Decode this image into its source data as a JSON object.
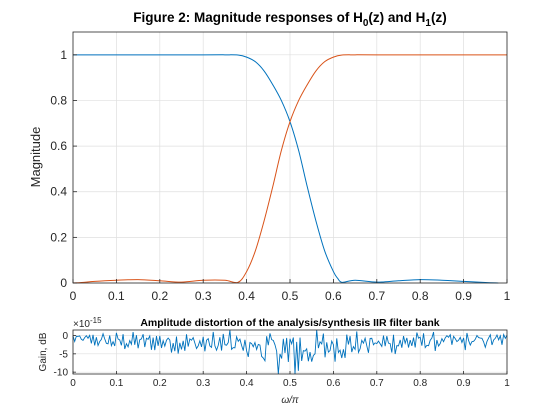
{
  "chart_data": [
    {
      "type": "line",
      "title": "Figure 2: Magnitude responses of H",
      "title_sub0": "0",
      "title_mid": "(z) and H",
      "title_sub1": "1",
      "title_end": "(z)",
      "xlabel": "",
      "ylabel": "Magnitude",
      "xlim": [
        0,
        1
      ],
      "ylim": [
        0,
        1.1
      ],
      "grid": true,
      "xticks": [
        "0",
        "0.1",
        "0.2",
        "0.3",
        "0.4",
        "0.5",
        "0.6",
        "0.7",
        "0.8",
        "0.9",
        "1"
      ],
      "yticks": [
        "0",
        "0.2",
        "0.4",
        "0.6",
        "0.8",
        "1"
      ],
      "series": [
        {
          "color": "#0072BD",
          "x": [
            0,
            0.05,
            0.1,
            0.2,
            0.3,
            0.35,
            0.38,
            0.4,
            0.42,
            0.44,
            0.46,
            0.48,
            0.5,
            0.52,
            0.54,
            0.56,
            0.58,
            0.6,
            0.61,
            0.62,
            0.65,
            0.7,
            0.75,
            0.8,
            0.85,
            0.9,
            0.95,
            0.98
          ],
          "y": [
            1,
            1,
            1,
            1,
            1,
            1,
            0.999,
            0.99,
            0.97,
            0.93,
            0.87,
            0.8,
            0.707,
            0.58,
            0.42,
            0.27,
            0.14,
            0.05,
            0.02,
            0.003,
            0.012,
            0.004,
            0.01,
            0.015,
            0.012,
            0.007,
            0.002,
            0
          ]
        },
        {
          "color": "#D95319",
          "x": [
            0,
            0.02,
            0.05,
            0.1,
            0.15,
            0.2,
            0.25,
            0.3,
            0.35,
            0.38,
            0.4,
            0.42,
            0.44,
            0.46,
            0.48,
            0.5,
            0.52,
            0.54,
            0.56,
            0.58,
            0.6,
            0.62,
            0.65,
            0.7,
            0.8,
            0.9,
            1
          ],
          "y": [
            0,
            0.002,
            0.007,
            0.012,
            0.015,
            0.01,
            0.004,
            0.012,
            0.012,
            0.003,
            0.05,
            0.14,
            0.27,
            0.42,
            0.58,
            0.707,
            0.8,
            0.87,
            0.93,
            0.97,
            0.99,
            0.999,
            1,
            1,
            1,
            1,
            1
          ]
        }
      ]
    },
    {
      "type": "line",
      "title": "Amplitude distortion of the analysis/synthesis IIR filter bank",
      "xlabel": "ω/π",
      "ylabel": "Gain, dB",
      "scale_exponent": "×10",
      "scale_power": "-15",
      "xlim": [
        0,
        1
      ],
      "ylim": [
        -10.5,
        1.5
      ],
      "grid": true,
      "xticks": [
        "0",
        "0.1",
        "0.2",
        "0.3",
        "0.4",
        "0.5",
        "0.6",
        "0.7",
        "0.8",
        "0.9",
        "1"
      ],
      "yticks": [
        "0",
        "-5",
        "-10"
      ],
      "series": [
        {
          "color": "#0072BD",
          "note_envelope_x": [
            0,
            0.1,
            0.2,
            0.3,
            0.4,
            0.45,
            0.5,
            0.55,
            0.6,
            0.7,
            0.8,
            0.9,
            1
          ],
          "note_envelope_y": [
            1.5,
            3,
            3,
            4,
            5,
            7,
            9,
            7,
            5,
            4,
            3,
            3,
            2
          ]
        }
      ]
    }
  ]
}
